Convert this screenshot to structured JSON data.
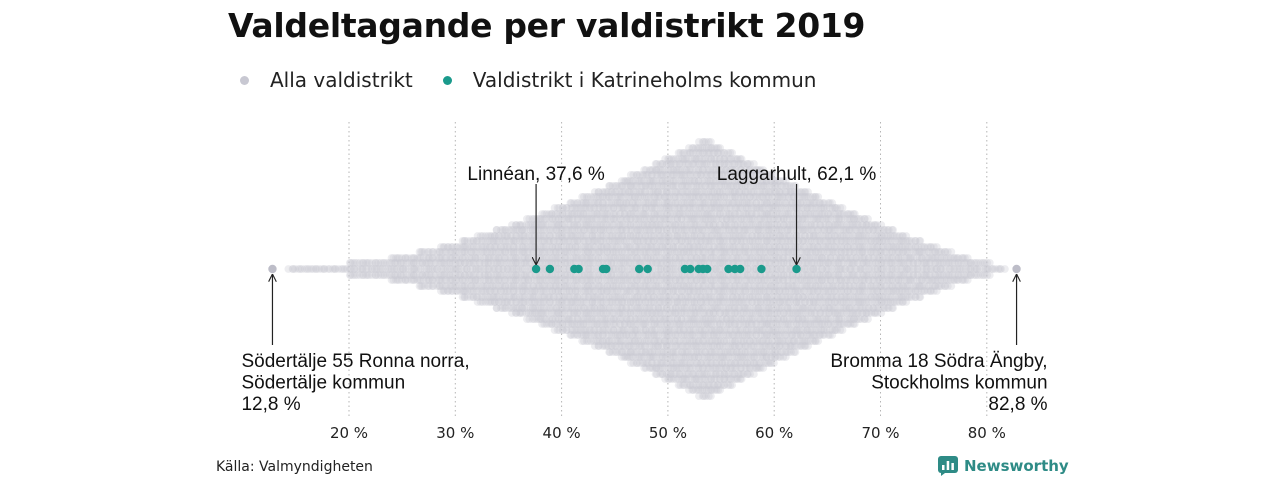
{
  "chart_data": {
    "type": "scatter",
    "subtype": "beeswarm",
    "title": "Valdeltagande per valdistrikt 2019",
    "x_unit": "%",
    "xlim": [
      10,
      88
    ],
    "ticks": [
      {
        "value": 20,
        "label": "20 %"
      },
      {
        "value": 30,
        "label": "30 %"
      },
      {
        "value": 40,
        "label": "40 %"
      },
      {
        "value": 50,
        "label": "50 %"
      },
      {
        "value": 60,
        "label": "60 %"
      },
      {
        "value": 70,
        "label": "70 %"
      },
      {
        "value": 80,
        "label": "80 %"
      }
    ],
    "grid": "vertical dotted",
    "legend_position": "top-left",
    "series": [
      {
        "name": "Alla valdistrikt",
        "color": "#c8c8d2",
        "min": 12.8,
        "max": 82.8,
        "peak": 53.5
      },
      {
        "name": "Valdistrikt i Katrineholms kommun",
        "color": "#1a9a8c",
        "values": [
          37.6,
          38.9,
          41.2,
          41.6,
          43.9,
          44.2,
          47.3,
          48.1,
          51.6,
          52.1,
          52.9,
          53.3,
          53.7,
          55.7,
          56.3,
          56.8,
          58.8,
          62.1
        ]
      }
    ],
    "annotations": [
      {
        "value": 37.6,
        "lines": [
          "Linnéan, 37,6 %"
        ],
        "position": "above",
        "align": "middle"
      },
      {
        "value": 62.1,
        "lines": [
          "Laggarhult, 62,1 %"
        ],
        "position": "above",
        "align": "middle"
      },
      {
        "value": 12.8,
        "lines": [
          "Södertälje 55 Ronna norra,",
          "Södertälje kommun",
          "12,8 %"
        ],
        "position": "below",
        "align": "start"
      },
      {
        "value": 82.8,
        "lines": [
          "Bromma 18 Södra Ängby,",
          "Stockholms kommun",
          "82,8 %"
        ],
        "position": "below",
        "align": "end"
      }
    ]
  },
  "source": "Källa: Valmyndigheten",
  "brand": "Newsworthy"
}
